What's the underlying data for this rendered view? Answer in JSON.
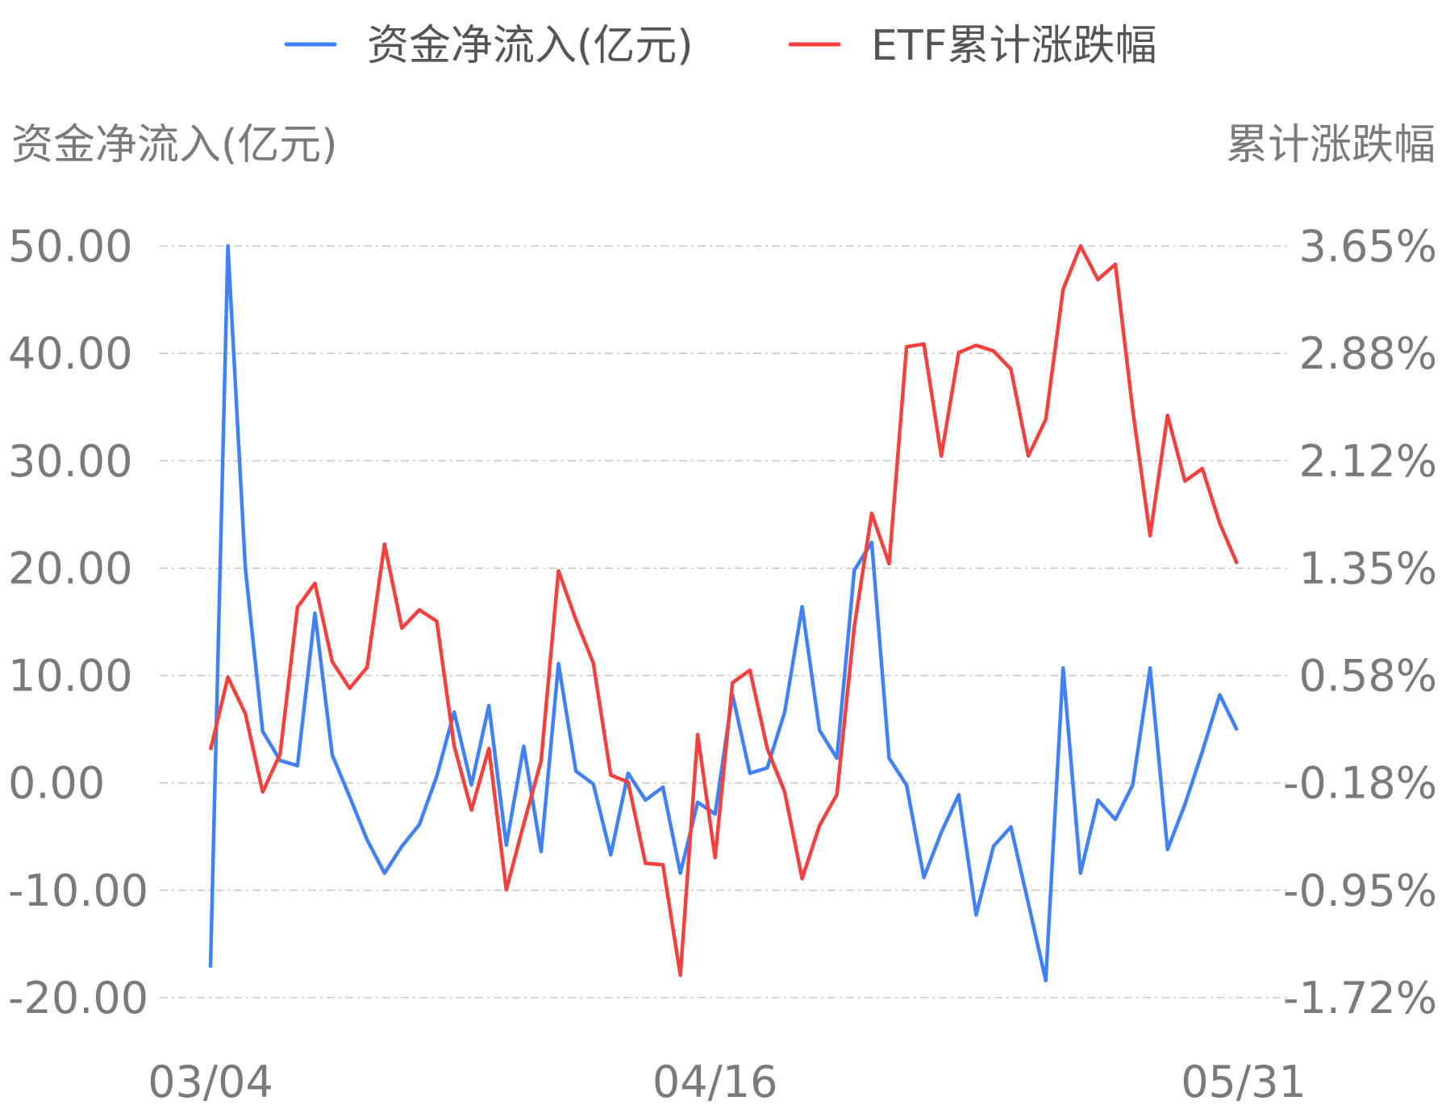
{
  "chart_data": {
    "type": "line",
    "legend": {
      "placement": "top-center",
      "items": [
        {
          "label": "资金净流入(亿元)",
          "color": "#4181f7"
        },
        {
          "label": "ETF累计涨跌幅",
          "color": "#f5413d"
        }
      ]
    },
    "left_axis": {
      "title": "资金净流入(亿元)",
      "ticks": [
        "50.00",
        "40.00",
        "30.00",
        "20.00",
        "10.00",
        "0.00",
        "-10.00",
        "-20.00"
      ],
      "range": [
        -20,
        50
      ]
    },
    "right_axis": {
      "title": "累计涨跌幅",
      "ticks": [
        "3.65%",
        "2.88%",
        "2.12%",
        "1.35%",
        "0.58%",
        "-0.18%",
        "-0.95%",
        "-1.72%"
      ],
      "range": [
        -1.72,
        3.65
      ]
    },
    "x_axis": {
      "tick_labels": [
        {
          "label": "03/04",
          "index": 0
        },
        {
          "label": "04/16",
          "index": 29
        },
        {
          "label": "05/31",
          "index": 59
        }
      ]
    },
    "grid": "horizontal-dashed",
    "series": [
      {
        "name": "资金净流入(亿元)",
        "axis": "left",
        "color": "#4181f7",
        "values": [
          -17.2,
          50.0,
          20.0,
          4.8,
          2.1,
          1.6,
          15.8,
          2.6,
          -1.3,
          -5.3,
          -8.4,
          -5.9,
          -3.9,
          0.6,
          6.6,
          -0.2,
          7.2,
          -5.8,
          3.4,
          -6.4,
          11.1,
          1.1,
          -0.1,
          -6.7,
          0.9,
          -1.6,
          -0.4,
          -8.4,
          -1.8,
          -2.9,
          8.2,
          0.9,
          1.4,
          6.6,
          16.4,
          4.9,
          2.3,
          19.8,
          22.4,
          2.3,
          -0.2,
          -8.8,
          -4.6,
          -1.1,
          -12.3,
          -5.9,
          -4.1,
          -11.2,
          -18.4,
          10.7,
          -8.4,
          -1.6,
          -3.4,
          -0.2,
          10.7,
          -6.2,
          -2.0,
          2.9,
          8.2,
          4.9
        ]
      },
      {
        "name": "ETF累计涨跌幅",
        "axis": "right",
        "color": "#f5413d",
        "values": [
          0.05,
          0.57,
          0.31,
          -0.25,
          0.02,
          1.07,
          1.24,
          0.68,
          0.49,
          0.64,
          1.52,
          0.92,
          1.05,
          0.97,
          0.08,
          -0.38,
          0.06,
          -0.95,
          -0.48,
          -0.03,
          1.33,
          0.98,
          0.67,
          -0.13,
          -0.18,
          -0.76,
          -0.77,
          -1.56,
          0.16,
          -0.72,
          0.53,
          0.62,
          0.06,
          -0.25,
          -0.87,
          -0.49,
          -0.27,
          0.93,
          1.74,
          1.38,
          2.93,
          2.95,
          2.15,
          2.89,
          2.94,
          2.9,
          2.77,
          2.15,
          2.41,
          3.34,
          3.65,
          3.41,
          3.52,
          2.48,
          1.58,
          2.44,
          1.97,
          2.06,
          1.67,
          1.38
        ]
      }
    ]
  }
}
